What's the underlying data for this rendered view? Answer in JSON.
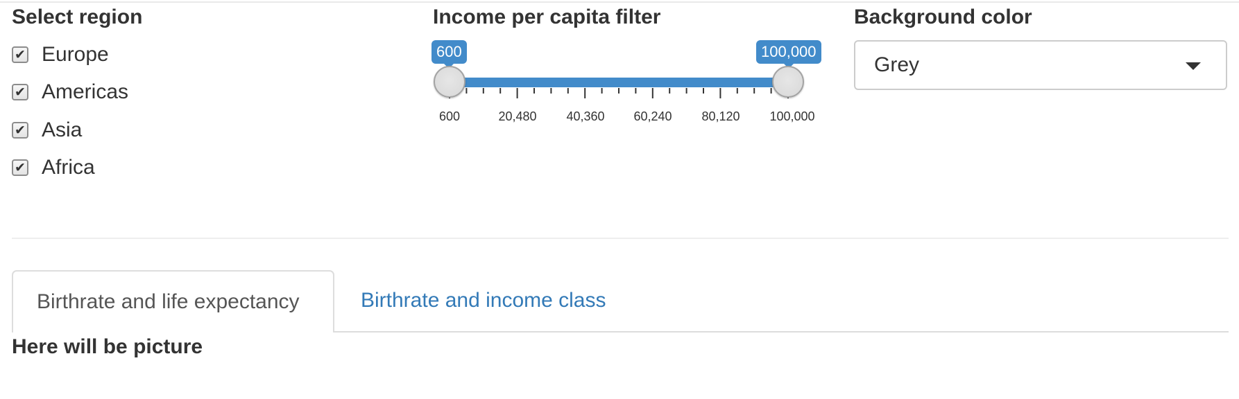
{
  "region": {
    "title": "Select region",
    "options": [
      {
        "label": "Europe",
        "checked": true
      },
      {
        "label": "Americas",
        "checked": true
      },
      {
        "label": "Asia",
        "checked": true
      },
      {
        "label": "Africa",
        "checked": true
      }
    ],
    "check_glyph": "✔"
  },
  "income_filter": {
    "title": "Income per capita filter",
    "min": 600,
    "max": 100000,
    "from_label": "600",
    "to_label": "100,000",
    "tick_labels": [
      "600",
      "20,480",
      "40,360",
      "60,240",
      "80,120",
      "100,000"
    ],
    "accent_color": "#428bca"
  },
  "background": {
    "title": "Background color",
    "selected": "Grey",
    "caret_icon": "caret-down-icon"
  },
  "tabs": [
    {
      "label": "Birthrate and life expectancy",
      "active": true
    },
    {
      "label": "Birthrate and income class",
      "active": false
    }
  ],
  "tab_content": {
    "text": "Here will be picture"
  },
  "colors": {
    "link": "#337ab7",
    "text": "#333333"
  }
}
